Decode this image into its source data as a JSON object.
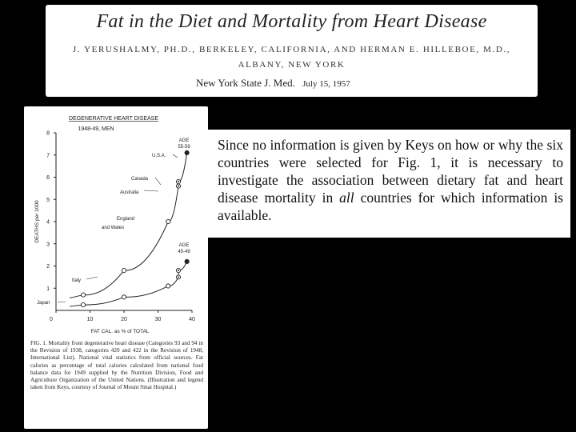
{
  "header": {
    "title": "Fat in the Diet and Mortality from Heart Disease",
    "authors_line1": "J. YERUSHALMY, PH.D., BERKELEY, CALIFORNIA, AND HERMAN E. HILLEBOE, M.D.,",
    "authors_line2": "ALBANY, NEW YORK",
    "journal": "New York State J. Med.",
    "date": "July 15, 1957"
  },
  "quote": {
    "text_before": "Since no information is given by Keys on how or why the six countries were selected for Fig. 1, it is necessary to investigate the association between dietary fat and heart disease mortality in ",
    "emphasis": "all",
    "text_after": " countries for which information is available."
  },
  "figure": {
    "caption": "FIG. 1. Mortality from degenerative heart disease (Categories 93 and 94 in the Revision of 1938, categories 420 and 422 in the Revision of 1948, International List). National vital statistics from official sources. Fat calories as percentage of total calories calculated from national food balance data for 1949 supplied by the Nutrition Division, Food and Agriculture Organization of the United Nations. (Illustration and legend taken from Keys, courtesy of Journal of Mount Sinai Hospital.)"
  },
  "chart_data": {
    "type": "scatter",
    "title": "DEGENERATIVE HEART DISEASE",
    "subtitle": "1948-49, MEN",
    "xlabel": "FAT CAL. as % of TOTAL",
    "ylabel": "DEATHS per 1000",
    "xlim": [
      0,
      40
    ],
    "ylim": [
      0,
      8
    ],
    "x_ticks": [
      0,
      10,
      20,
      30,
      40
    ],
    "y_ticks": [
      1,
      2,
      3,
      4,
      5,
      6,
      7,
      8
    ],
    "series": [
      {
        "name": "AGE 55-59",
        "label_lines": [
          "AGE",
          "55-59"
        ],
        "points": [
          {
            "country": "Japan",
            "x": 8,
            "y": 0.7
          },
          {
            "country": "Italy",
            "x": 20,
            "y": 1.8
          },
          {
            "country": "England and Wales",
            "x": 33,
            "y": 4.0
          },
          {
            "country": "Australia",
            "x": 36,
            "y": 5.6
          },
          {
            "country": "Canada",
            "x": 36,
            "y": 5.8
          },
          {
            "country": "U.S.A.",
            "x": 38.5,
            "y": 7.1
          }
        ]
      },
      {
        "name": "AGE 45-49",
        "label_lines": [
          "AGE",
          "45-49"
        ],
        "points": [
          {
            "country": "Japan",
            "x": 8,
            "y": 0.25
          },
          {
            "country": "Italy",
            "x": 20,
            "y": 0.6
          },
          {
            "country": "England and Wales",
            "x": 33,
            "y": 1.1
          },
          {
            "country": "Australia",
            "x": 36,
            "y": 1.5
          },
          {
            "country": "Canada",
            "x": 36,
            "y": 1.8
          },
          {
            "country": "U.S.A.",
            "x": 38.5,
            "y": 2.2
          }
        ]
      }
    ],
    "annotations": [
      {
        "text": "Japan"
      },
      {
        "text": "Italy"
      },
      {
        "text": "England"
      },
      {
        "text": "and Wales"
      },
      {
        "text": "Australia"
      },
      {
        "text": "Canada"
      },
      {
        "text": "U.S.A."
      }
    ]
  }
}
